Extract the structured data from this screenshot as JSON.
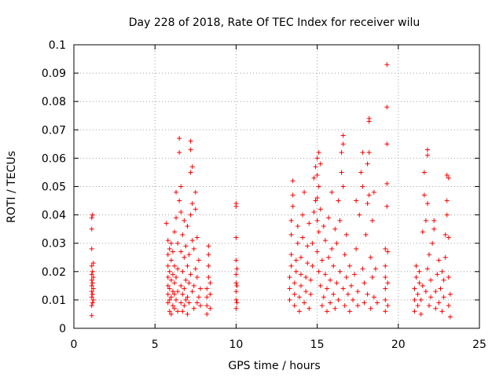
{
  "chart_data": {
    "type": "scatter",
    "title": "Day 228 of 2018, Rate Of TEC Index for receiver wilu",
    "xlabel": "GPS time / hours",
    "ylabel": "ROTI / TECUs",
    "xlim": [
      0,
      25
    ],
    "ylim": [
      0,
      0.1
    ],
    "x_ticks": [
      0,
      5,
      10,
      15,
      20,
      25
    ],
    "x_tick_labels": [
      "0",
      "5",
      "10",
      "15",
      "20",
      "25"
    ],
    "y_ticks": [
      0,
      0.01,
      0.02,
      0.03,
      0.04,
      0.05,
      0.06,
      0.07,
      0.08,
      0.09,
      0.1
    ],
    "y_tick_labels": [
      "0",
      "0.01",
      "0.02",
      "0.03",
      "0.04",
      "0.05",
      "0.06",
      "0.07",
      "0.08",
      "0.09",
      "0.1"
    ],
    "grid": true,
    "marker": "plus",
    "color": "#ff0000",
    "series": [
      {
        "points": [
          [
            1.1,
            0.0045
          ],
          [
            1.1,
            0.008
          ],
          [
            1.1,
            0.011
          ],
          [
            1.1,
            0.013
          ],
          [
            1.1,
            0.015
          ],
          [
            1.1,
            0.017
          ],
          [
            1.1,
            0.019
          ],
          [
            1.1,
            0.022
          ],
          [
            1.1,
            0.028
          ],
          [
            1.1,
            0.035
          ],
          [
            1.1,
            0.039
          ],
          [
            1.15,
            0.04
          ],
          [
            1.15,
            0.009
          ],
          [
            1.15,
            0.012
          ],
          [
            1.15,
            0.016
          ],
          [
            1.15,
            0.02
          ],
          [
            1.2,
            0.01
          ],
          [
            1.2,
            0.014
          ],
          [
            1.2,
            0.018
          ],
          [
            1.2,
            0.023
          ],
          [
            5.7,
            0.037
          ],
          [
            5.8,
            0.031
          ],
          [
            5.8,
            0.026
          ],
          [
            5.8,
            0.022
          ],
          [
            5.8,
            0.018
          ],
          [
            5.8,
            0.015
          ],
          [
            5.8,
            0.012
          ],
          [
            5.8,
            0.009
          ],
          [
            5.9,
            0.006
          ],
          [
            5.9,
            0.01
          ],
          [
            5.9,
            0.014
          ],
          [
            5.9,
            0.02
          ],
          [
            5.9,
            0.028
          ],
          [
            6.0,
            0.005
          ],
          [
            6.0,
            0.011
          ],
          [
            6.0,
            0.017
          ],
          [
            6.0,
            0.024
          ],
          [
            6.0,
            0.03
          ],
          [
            6.1,
            0.008
          ],
          [
            6.1,
            0.013
          ],
          [
            6.1,
            0.019
          ],
          [
            6.1,
            0.027
          ],
          [
            6.2,
            0.007
          ],
          [
            6.2,
            0.012
          ],
          [
            6.2,
            0.016
          ],
          [
            6.2,
            0.022
          ],
          [
            6.2,
            0.034
          ],
          [
            6.3,
            0.048
          ],
          [
            6.3,
            0.039
          ],
          [
            6.3,
            0.018
          ],
          [
            6.3,
            0.01
          ],
          [
            6.4,
            0.006
          ],
          [
            6.4,
            0.013
          ],
          [
            6.4,
            0.021
          ],
          [
            6.4,
            0.03
          ],
          [
            6.5,
            0.045
          ],
          [
            6.5,
            0.062
          ],
          [
            6.5,
            0.067
          ],
          [
            6.6,
            0.05
          ],
          [
            6.6,
            0.041
          ],
          [
            6.6,
            0.027
          ],
          [
            6.6,
            0.015
          ],
          [
            6.6,
            0.009
          ],
          [
            6.7,
            0.006
          ],
          [
            6.7,
            0.012
          ],
          [
            6.7,
            0.02
          ],
          [
            6.7,
            0.033
          ],
          [
            6.8,
            0.038
          ],
          [
            6.8,
            0.025
          ],
          [
            6.8,
            0.014
          ],
          [
            6.8,
            0.008
          ],
          [
            6.9,
            0.01
          ],
          [
            6.9,
            0.017
          ],
          [
            6.9,
            0.029
          ],
          [
            7.0,
            0.036
          ],
          [
            7.0,
            0.022
          ],
          [
            7.0,
            0.011
          ],
          [
            7.0,
            0.005
          ],
          [
            7.1,
            0.009
          ],
          [
            7.1,
            0.016
          ],
          [
            7.1,
            0.026
          ],
          [
            7.2,
            0.063
          ],
          [
            7.2,
            0.066
          ],
          [
            7.2,
            0.055
          ],
          [
            7.2,
            0.04
          ],
          [
            7.2,
            0.019
          ],
          [
            7.3,
            0.057
          ],
          [
            7.3,
            0.044
          ],
          [
            7.3,
            0.031
          ],
          [
            7.3,
            0.013
          ],
          [
            7.4,
            0.007
          ],
          [
            7.4,
            0.015
          ],
          [
            7.4,
            0.028
          ],
          [
            7.5,
            0.048
          ],
          [
            7.5,
            0.042
          ],
          [
            7.5,
            0.021
          ],
          [
            7.6,
            0.009
          ],
          [
            7.6,
            0.018
          ],
          [
            7.6,
            0.032
          ],
          [
            7.7,
            0.011
          ],
          [
            7.7,
            0.024
          ],
          [
            7.8,
            0.008
          ],
          [
            7.8,
            0.014
          ],
          [
            8.2,
            0.005
          ],
          [
            8.2,
            0.008
          ],
          [
            8.2,
            0.011
          ],
          [
            8.2,
            0.014
          ],
          [
            8.3,
            0.018
          ],
          [
            8.3,
            0.022
          ],
          [
            8.3,
            0.026
          ],
          [
            8.3,
            0.029
          ],
          [
            8.4,
            0.007
          ],
          [
            8.4,
            0.012
          ],
          [
            8.4,
            0.016
          ],
          [
            10.0,
            0.007
          ],
          [
            10.0,
            0.01
          ],
          [
            10.0,
            0.013
          ],
          [
            10.0,
            0.016
          ],
          [
            10.0,
            0.019
          ],
          [
            10.0,
            0.024
          ],
          [
            10.0,
            0.032
          ],
          [
            10.0,
            0.043
          ],
          [
            10.0,
            0.044
          ],
          [
            10.05,
            0.009
          ],
          [
            10.05,
            0.015
          ],
          [
            10.05,
            0.021
          ],
          [
            13.3,
            0.01
          ],
          [
            13.3,
            0.014
          ],
          [
            13.3,
            0.018
          ],
          [
            13.4,
            0.022
          ],
          [
            13.4,
            0.026
          ],
          [
            13.4,
            0.033
          ],
          [
            13.4,
            0.038
          ],
          [
            13.5,
            0.043
          ],
          [
            13.5,
            0.047
          ],
          [
            13.5,
            0.052
          ],
          [
            13.6,
            0.008
          ],
          [
            13.6,
            0.012
          ],
          [
            13.6,
            0.016
          ],
          [
            13.7,
            0.02
          ],
          [
            13.7,
            0.024
          ],
          [
            13.8,
            0.03
          ],
          [
            13.8,
            0.036
          ],
          [
            13.9,
            0.006
          ],
          [
            13.9,
            0.011
          ],
          [
            14.0,
            0.015
          ],
          [
            14.0,
            0.019
          ],
          [
            14.0,
            0.025
          ],
          [
            14.1,
            0.032
          ],
          [
            14.1,
            0.04
          ],
          [
            14.2,
            0.048
          ],
          [
            14.2,
            0.009
          ],
          [
            14.3,
            0.013
          ],
          [
            14.3,
            0.018
          ],
          [
            14.4,
            0.023
          ],
          [
            14.4,
            0.029
          ],
          [
            14.5,
            0.037
          ],
          [
            14.5,
            0.007
          ],
          [
            14.6,
            0.012
          ],
          [
            14.6,
            0.017
          ],
          [
            14.7,
            0.022
          ],
          [
            14.7,
            0.03
          ],
          [
            14.8,
            0.041
          ],
          [
            14.8,
            0.053
          ],
          [
            14.9,
            0.057
          ],
          [
            14.9,
            0.045
          ],
          [
            15.0,
            0.06
          ],
          [
            15.0,
            0.054
          ],
          [
            15.0,
            0.046
          ],
          [
            15.0,
            0.038
          ],
          [
            15.0,
            0.027
          ],
          [
            15.1,
            0.062
          ],
          [
            15.1,
            0.05
          ],
          [
            15.1,
            0.034
          ],
          [
            15.1,
            0.02
          ],
          [
            15.2,
            0.058
          ],
          [
            15.2,
            0.042
          ],
          [
            15.2,
            0.015
          ],
          [
            15.3,
            0.008
          ],
          [
            15.3,
            0.024
          ],
          [
            15.4,
            0.036
          ],
          [
            15.4,
            0.011
          ],
          [
            15.5,
            0.019
          ],
          [
            15.5,
            0.031
          ],
          [
            15.6,
            0.006
          ],
          [
            15.6,
            0.014
          ],
          [
            15.7,
            0.025
          ],
          [
            15.7,
            0.039
          ],
          [
            15.8,
            0.009
          ],
          [
            15.8,
            0.017
          ],
          [
            15.9,
            0.028
          ],
          [
            15.9,
            0.048
          ],
          [
            16.0,
            0.012
          ],
          [
            16.0,
            0.022
          ],
          [
            16.1,
            0.035
          ],
          [
            16.1,
            0.007
          ],
          [
            16.2,
            0.016
          ],
          [
            16.2,
            0.03
          ],
          [
            16.3,
            0.045
          ],
          [
            16.3,
            0.01
          ],
          [
            16.4,
            0.02
          ],
          [
            16.4,
            0.038
          ],
          [
            16.5,
            0.062
          ],
          [
            16.5,
            0.055
          ],
          [
            16.6,
            0.065
          ],
          [
            16.6,
            0.068
          ],
          [
            16.6,
            0.05
          ],
          [
            16.6,
            0.014
          ],
          [
            16.7,
            0.026
          ],
          [
            16.7,
            0.008
          ],
          [
            16.8,
            0.018
          ],
          [
            16.8,
            0.033
          ],
          [
            16.9,
            0.012
          ],
          [
            17.0,
            0.022
          ],
          [
            17.0,
            0.006
          ],
          [
            17.1,
            0.015
          ],
          [
            17.2,
            0.01
          ],
          [
            17.3,
            0.019
          ],
          [
            17.4,
            0.045
          ],
          [
            17.4,
            0.028
          ],
          [
            17.5,
            0.008
          ],
          [
            17.5,
            0.013
          ],
          [
            17.6,
            0.04
          ],
          [
            17.7,
            0.055
          ],
          [
            17.8,
            0.062
          ],
          [
            17.8,
            0.05
          ],
          [
            17.8,
            0.021
          ],
          [
            17.9,
            0.009
          ],
          [
            17.9,
            0.016
          ],
          [
            18.0,
            0.033
          ],
          [
            18.1,
            0.058
          ],
          [
            18.1,
            0.044
          ],
          [
            18.1,
            0.012
          ],
          [
            18.2,
            0.062
          ],
          [
            18.2,
            0.073
          ],
          [
            18.2,
            0.074
          ],
          [
            18.2,
            0.047
          ],
          [
            18.3,
            0.025
          ],
          [
            18.3,
            0.007
          ],
          [
            18.4,
            0.018
          ],
          [
            18.4,
            0.038
          ],
          [
            18.5,
            0.048
          ],
          [
            18.5,
            0.011
          ],
          [
            18.6,
            0.021
          ],
          [
            18.7,
            0.009
          ],
          [
            19.2,
            0.006
          ],
          [
            19.2,
            0.01
          ],
          [
            19.2,
            0.014
          ],
          [
            19.2,
            0.018
          ],
          [
            19.2,
            0.022
          ],
          [
            19.2,
            0.028
          ],
          [
            19.3,
            0.043
          ],
          [
            19.3,
            0.051
          ],
          [
            19.3,
            0.065
          ],
          [
            19.3,
            0.078
          ],
          [
            19.3,
            0.093
          ],
          [
            19.35,
            0.008
          ],
          [
            19.35,
            0.016
          ],
          [
            19.35,
            0.027
          ],
          [
            21.0,
            0.006
          ],
          [
            21.0,
            0.01
          ],
          [
            21.0,
            0.014
          ],
          [
            21.1,
            0.018
          ],
          [
            21.1,
            0.022
          ],
          [
            21.2,
            0.008
          ],
          [
            21.2,
            0.012
          ],
          [
            21.3,
            0.016
          ],
          [
            21.3,
            0.02
          ],
          [
            21.4,
            0.005
          ],
          [
            21.4,
            0.01
          ],
          [
            21.5,
            0.015
          ],
          [
            21.5,
            0.034
          ],
          [
            21.6,
            0.047
          ],
          [
            21.6,
            0.055
          ],
          [
            21.7,
            0.038
          ],
          [
            21.7,
            0.013
          ],
          [
            21.8,
            0.061
          ],
          [
            21.8,
            0.063
          ],
          [
            21.8,
            0.044
          ],
          [
            21.8,
            0.021
          ],
          [
            21.9,
            0.008
          ],
          [
            21.9,
            0.026
          ],
          [
            22.0,
            0.011
          ],
          [
            22.0,
            0.017
          ],
          [
            22.1,
            0.03
          ],
          [
            22.2,
            0.035
          ],
          [
            22.2,
            0.038
          ],
          [
            22.3,
            0.007
          ],
          [
            22.3,
            0.013
          ],
          [
            22.4,
            0.019
          ],
          [
            22.5,
            0.024
          ],
          [
            22.5,
            0.009
          ],
          [
            22.6,
            0.014
          ],
          [
            22.7,
            0.02
          ],
          [
            22.7,
            0.006
          ],
          [
            22.8,
            0.011
          ],
          [
            22.8,
            0.017
          ],
          [
            22.9,
            0.025
          ],
          [
            22.9,
            0.033
          ],
          [
            23.0,
            0.054
          ],
          [
            23.0,
            0.045
          ],
          [
            23.0,
            0.04
          ],
          [
            23.1,
            0.053
          ],
          [
            23.1,
            0.032
          ],
          [
            23.1,
            0.018
          ],
          [
            23.1,
            0.008
          ],
          [
            23.2,
            0.004
          ],
          [
            23.2,
            0.012
          ]
        ]
      }
    ]
  }
}
